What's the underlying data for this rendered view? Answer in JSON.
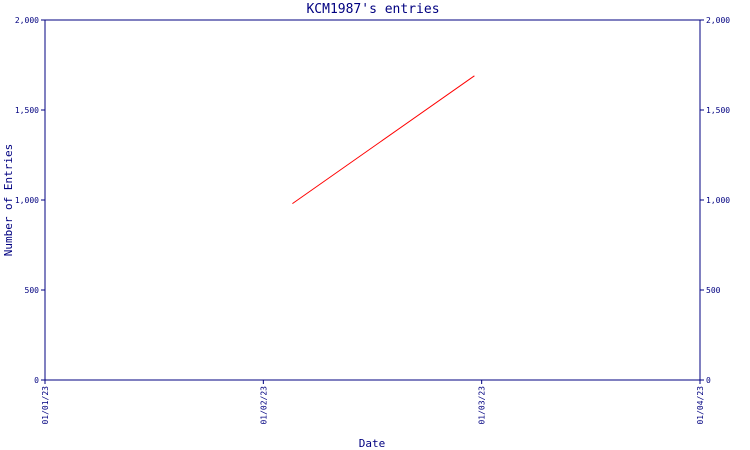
{
  "chart_data": {
    "type": "line",
    "title": "KCM1987's entries",
    "xlabel": "Date",
    "ylabel": "Number of Entries",
    "x_ticks": [
      "01/01/23",
      "01/02/23",
      "01/03/23",
      "01/04/23"
    ],
    "y_ticks": [
      {
        "value": 0,
        "label": "0"
      },
      {
        "value": 500,
        "label": "500"
      },
      {
        "value": 1000,
        "label": "1,000"
      },
      {
        "value": 1500,
        "label": "1,500"
      },
      {
        "value": 2000,
        "label": "2,000"
      }
    ],
    "ylim": [
      0,
      2000
    ],
    "xlim": [
      "2023-01-01",
      "2023-04-01"
    ],
    "grid": false,
    "colors": {
      "axis": "#000080",
      "line": "#ff0000"
    },
    "series": [
      {
        "points": [
          {
            "x": "2023-02-04",
            "y": 980
          },
          {
            "x": "2023-03-01",
            "y": 1690
          }
        ]
      }
    ]
  }
}
